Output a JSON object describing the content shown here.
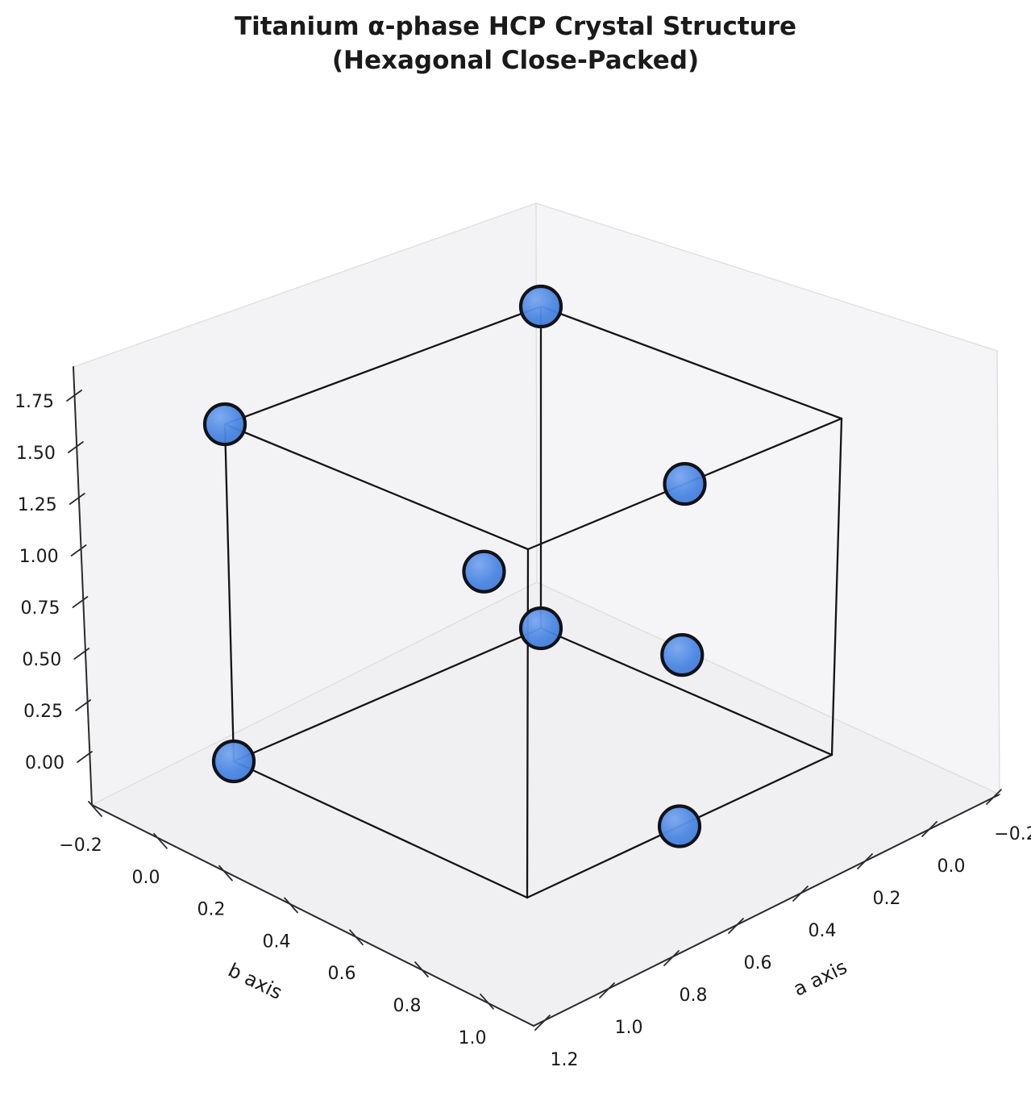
{
  "title": {
    "line1": "Titanium α-phase HCP Crystal Structure",
    "line2": "(Hexagonal Close-Packed)"
  },
  "axes": {
    "a": {
      "label": "a axis",
      "tick_values": [
        1.2,
        1.0,
        0.8,
        0.6,
        0.4,
        0.2,
        0.0,
        -0.2
      ],
      "tick_labels": [
        "1.2",
        "1.0",
        "0.8",
        "0.6",
        "0.4",
        "0.2",
        "0.0",
        "−0.2"
      ]
    },
    "b": {
      "label": "b axis",
      "tick_values": [
        -0.2,
        0.0,
        0.2,
        0.4,
        0.6,
        0.8,
        1.0
      ],
      "tick_labels": [
        "−0.2",
        "0.0",
        "0.2",
        "0.4",
        "0.6",
        "0.8",
        "1.0"
      ]
    },
    "z": {
      "label": "",
      "tick_values": [
        0.0,
        0.25,
        0.5,
        0.75,
        1.0,
        1.25,
        1.5,
        1.75
      ],
      "tick_labels": [
        "0.00",
        "0.25",
        "0.50",
        "0.75",
        "1.00",
        "1.25",
        "1.50",
        "1.75"
      ]
    }
  },
  "chart_data": {
    "type": "scatter",
    "subtype": "scatter3d",
    "title": "Titanium α-phase HCP Crystal Structure (Hexagonal Close-Packed)",
    "material": "Titanium α-phase",
    "structure": "HCP (Hexagonal Close-Packed)",
    "c_over_a": 1.587,
    "atoms": [
      {
        "a": 0.0,
        "b": 0.0,
        "z": 0.0
      },
      {
        "a": 1.0,
        "b": 0.0,
        "z": 0.0
      },
      {
        "a": 0.0,
        "b": 0.0,
        "z": 1.587
      },
      {
        "a": 1.0,
        "b": 0.0,
        "z": 1.587
      },
      {
        "a": 0.5,
        "b": 1.0,
        "z": 0.0
      },
      {
        "a": 0.5,
        "b": 1.0,
        "z": 0.794
      },
      {
        "a": 0.5,
        "b": 1.0,
        "z": 1.587
      },
      {
        "a": 0.5,
        "b": 0.333,
        "z": 0.794
      }
    ],
    "unit_cell": {
      "a_range": [
        0,
        1
      ],
      "b_range": [
        0,
        1
      ],
      "z_range": [
        0,
        1.587
      ]
    },
    "axis_ticks_shown": {
      "a": [
        -0.2,
        1.2
      ],
      "b": [
        -0.2,
        1.0
      ],
      "z": [
        0.0,
        1.75
      ]
    },
    "grid": false,
    "legend": false,
    "style": {
      "atom_color": "#4a86e2",
      "atom_highlight": "#79a6ef",
      "atom_shadow": "#3e76d2",
      "atom_edge_color": "#10131a",
      "cell_edge_color": "#141414",
      "axis_line_color": "#2a2a2a",
      "tick_text_color": "#1a1a1a",
      "pane_left_color": "#f3f3f5",
      "pane_right_color": "#f5f5f7",
      "pane_floor_color": "#f0f0f2",
      "pane_edge_color": "#dcdce0"
    }
  }
}
